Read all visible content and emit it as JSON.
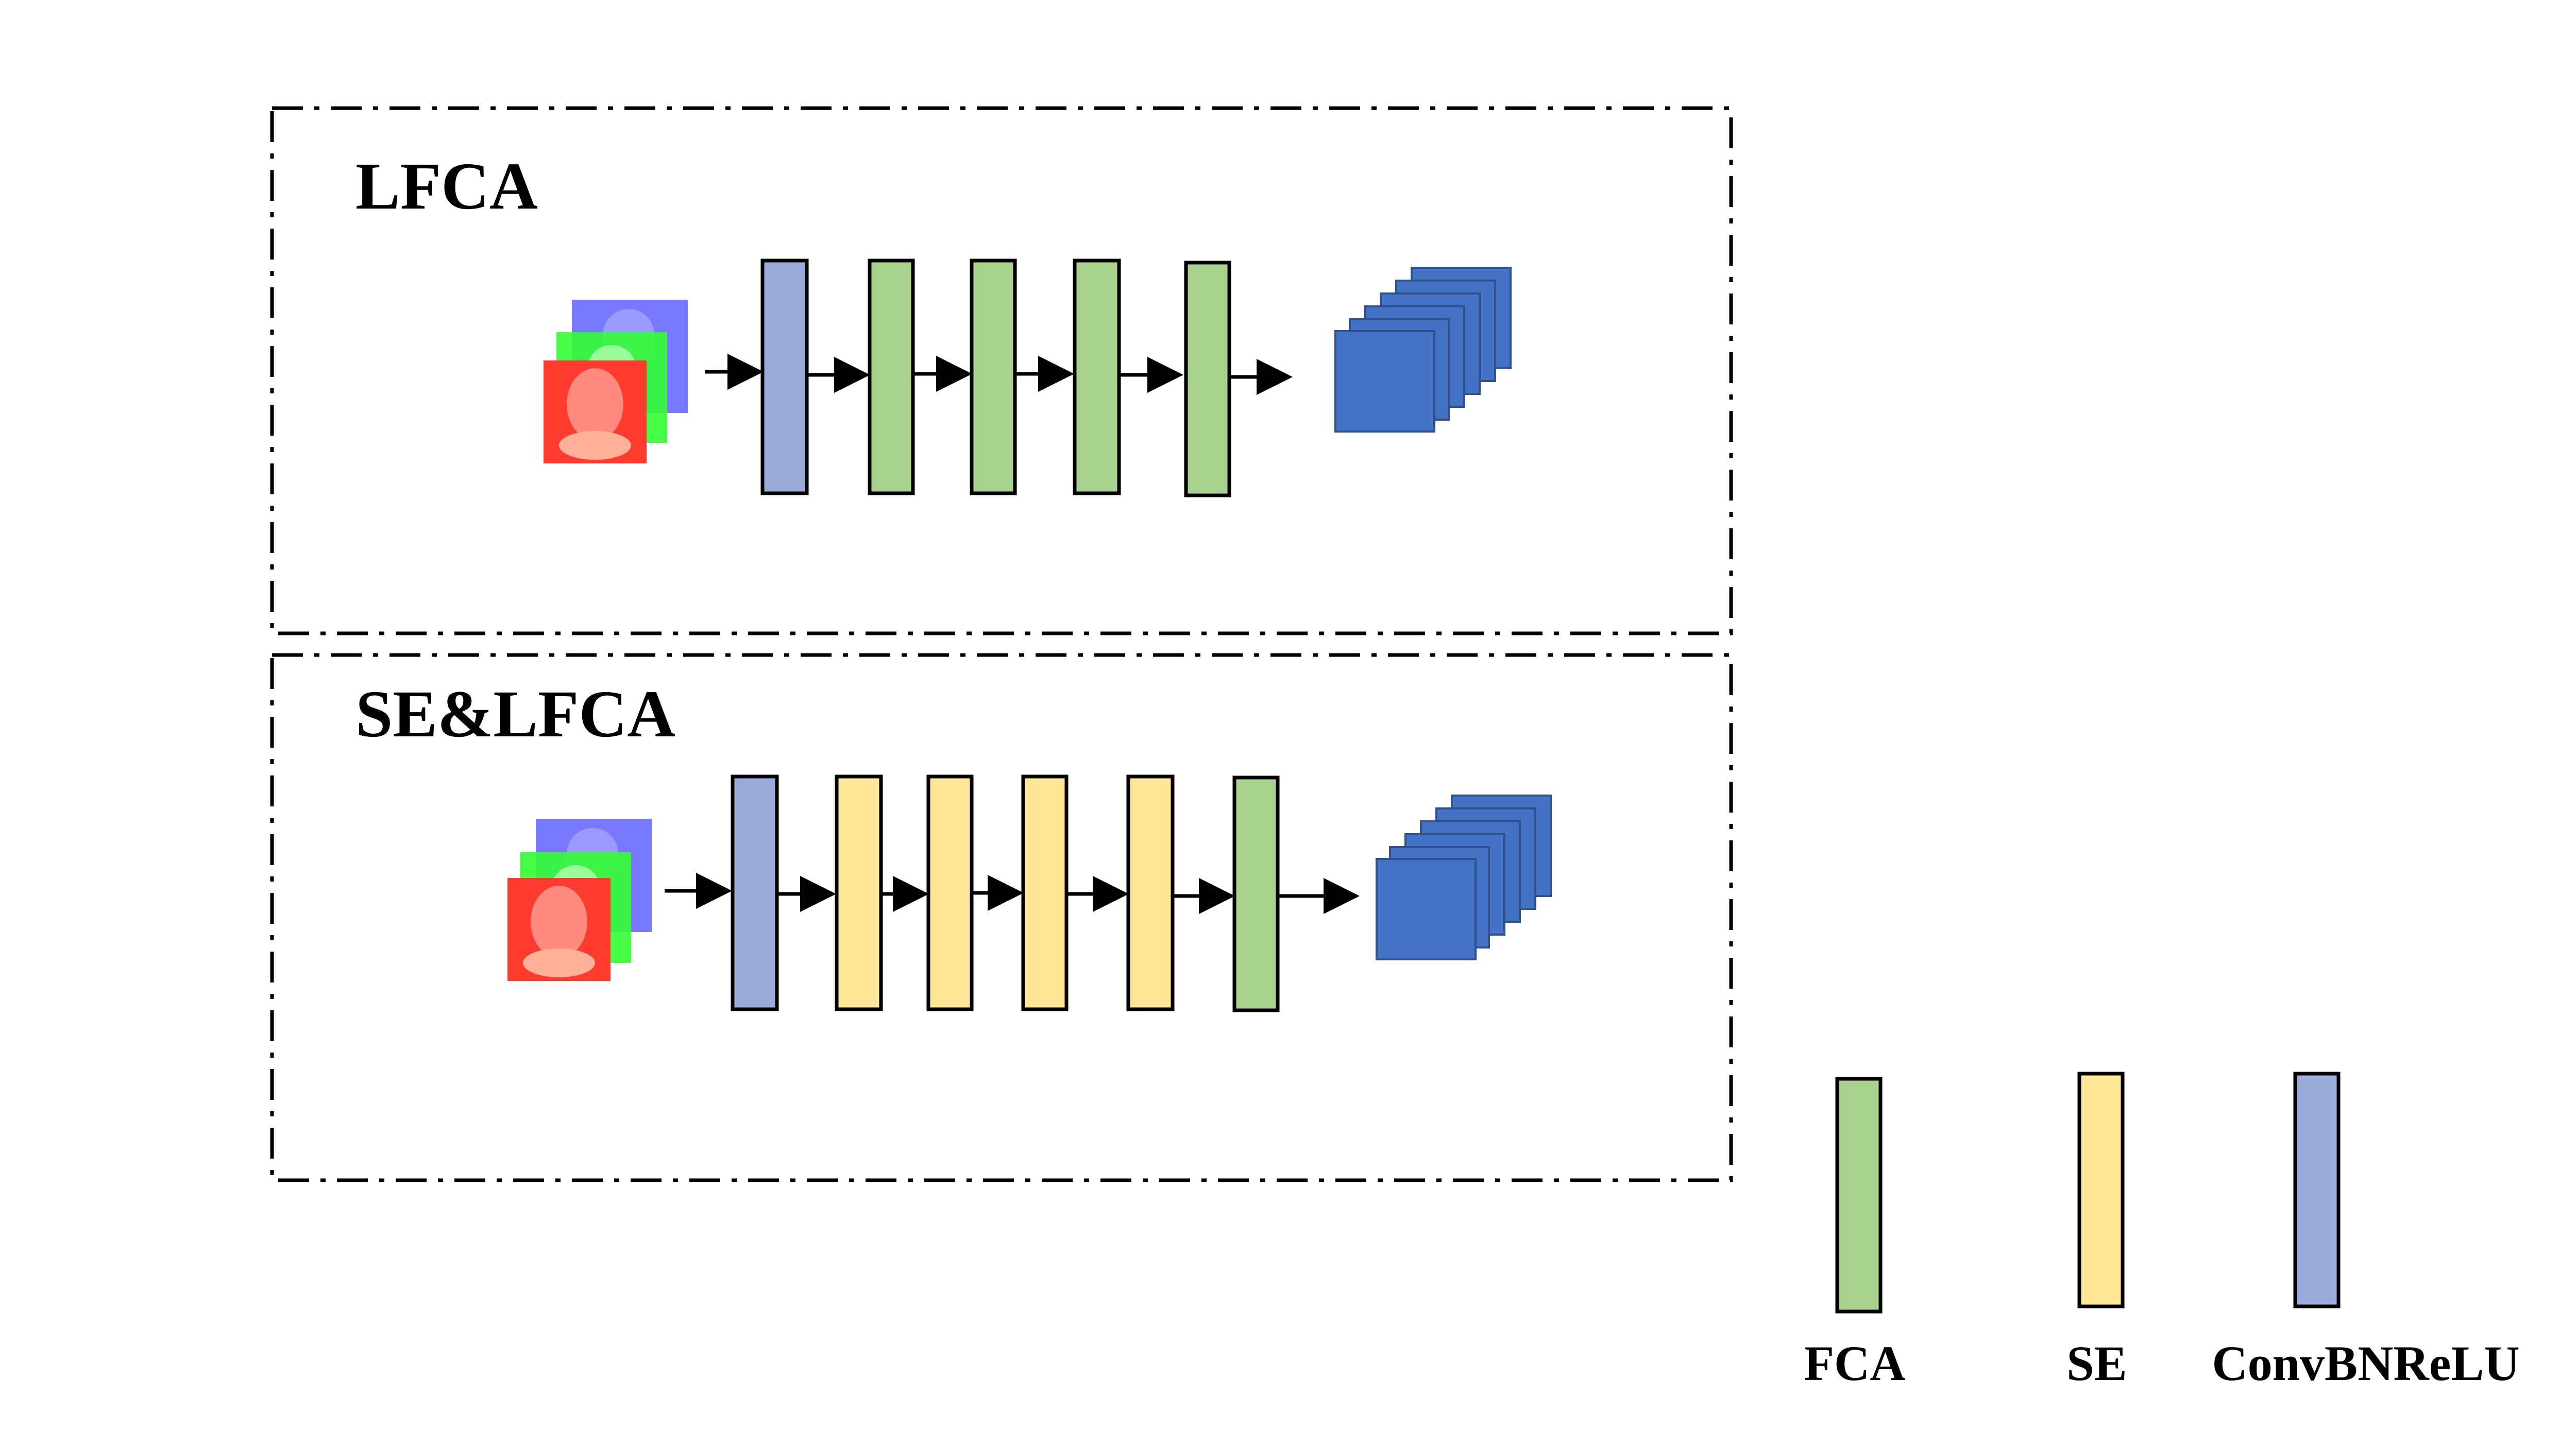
{
  "panels": [
    {
      "id": "lfca",
      "title": "LFCA",
      "blocks": [
        "ConvBNReLU",
        "FCA",
        "FCA",
        "FCA",
        "FCA"
      ]
    },
    {
      "id": "se-lfca",
      "title": "SE&LFCA",
      "blocks": [
        "ConvBNReLU",
        "SE",
        "SE",
        "SE",
        "SE",
        "FCA"
      ]
    }
  ],
  "legend": [
    {
      "type": "FCA",
      "label": "FCA"
    },
    {
      "type": "SE",
      "label": "SE"
    },
    {
      "type": "ConvBNReLU",
      "label": "ConvBNReLU"
    }
  ],
  "colors": {
    "FCA": "#a9d18e",
    "SE": "#ffe699",
    "ConvBNReLU": "#9dabdb",
    "feature_map": "#4472c4",
    "feature_map_edge": "#2f528f",
    "channel_red": "#ff3b30",
    "channel_green": "#33ff33",
    "channel_blue": "#6a6aff"
  }
}
